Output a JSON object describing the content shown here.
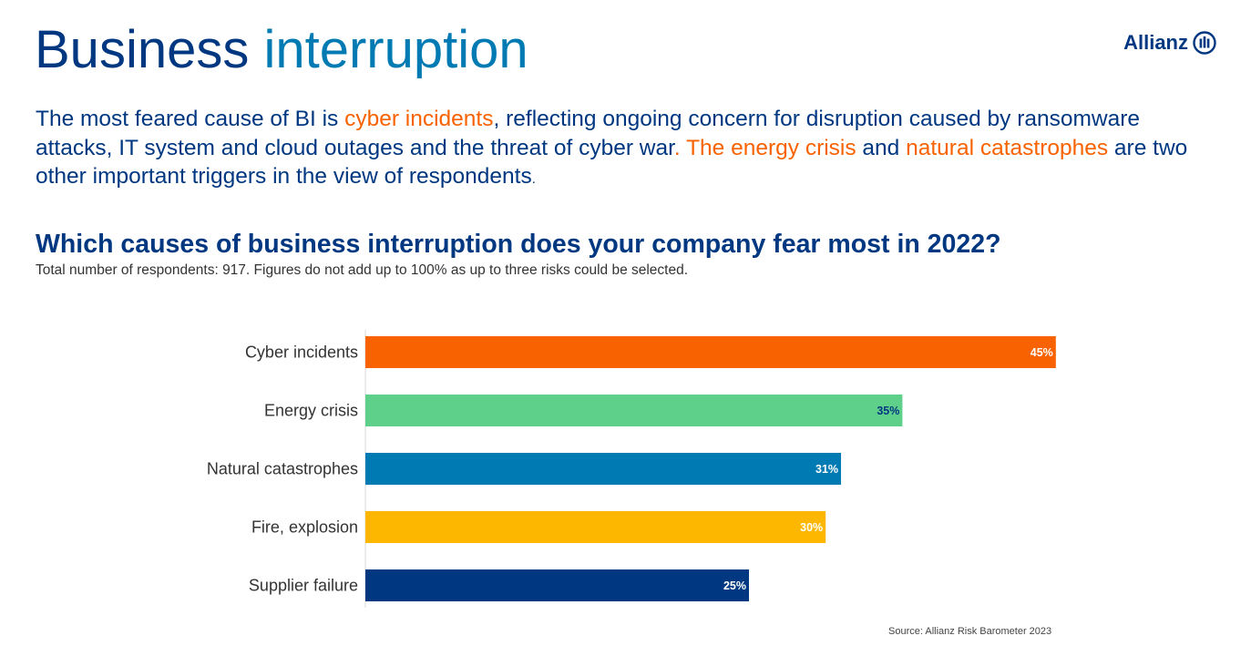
{
  "header": {
    "title_part1": "Business",
    "title_part2": "interruption",
    "logo_text": "Allianz"
  },
  "intro": {
    "segments": [
      {
        "text": "The most feared cause of BI is ",
        "highlight": false
      },
      {
        "text": "cyber incidents",
        "highlight": true
      },
      {
        "text": ", reflecting ongoing concern for disruption caused by ransomware attacks, IT system and cloud outages and the threat of cyber war",
        "highlight": false
      },
      {
        "text": ". The energy crisis",
        "highlight": true
      },
      {
        "text": " and ",
        "highlight": false
      },
      {
        "text": "natural catastrophes",
        "highlight": true
      },
      {
        "text": " are two other important triggers in the view of respondents",
        "highlight": false
      },
      {
        "text": ".",
        "highlight": false,
        "small": true
      }
    ]
  },
  "question": "Which causes of business interruption does your company fear most in 2022?",
  "note": "Total number of respondents: 917. Figures do not add up to 100% as up to three risks could be selected.",
  "source": "Source: Allianz Risk Barometer 2023",
  "colors": {
    "navy": "#003781",
    "blue": "#007ab3",
    "orange": "#f86200",
    "green": "#5fd08a",
    "yellow": "#fdb700",
    "axis": "#d9d9d9",
    "label": "#333333"
  },
  "chart_data": {
    "type": "bar",
    "orientation": "horizontal",
    "title": "Which causes of business interruption does your company fear most in 2022?",
    "categories": [
      "Cyber incidents",
      "Energy crisis",
      "Natural catastrophes",
      "Fire, explosion",
      "Supplier failure"
    ],
    "values": [
      45,
      35,
      31,
      30,
      25
    ],
    "value_labels": [
      "45%",
      "35%",
      "31%",
      "30%",
      "25%"
    ],
    "bar_colors": [
      "#f86200",
      "#5fd08a",
      "#007ab3",
      "#fdb700",
      "#003781"
    ],
    "label_colors": [
      "#ffffff",
      "#003781",
      "#ffffff",
      "#ffffff",
      "#ffffff"
    ],
    "xlabel": "",
    "ylabel": "",
    "grid": false,
    "legend": "none"
  }
}
